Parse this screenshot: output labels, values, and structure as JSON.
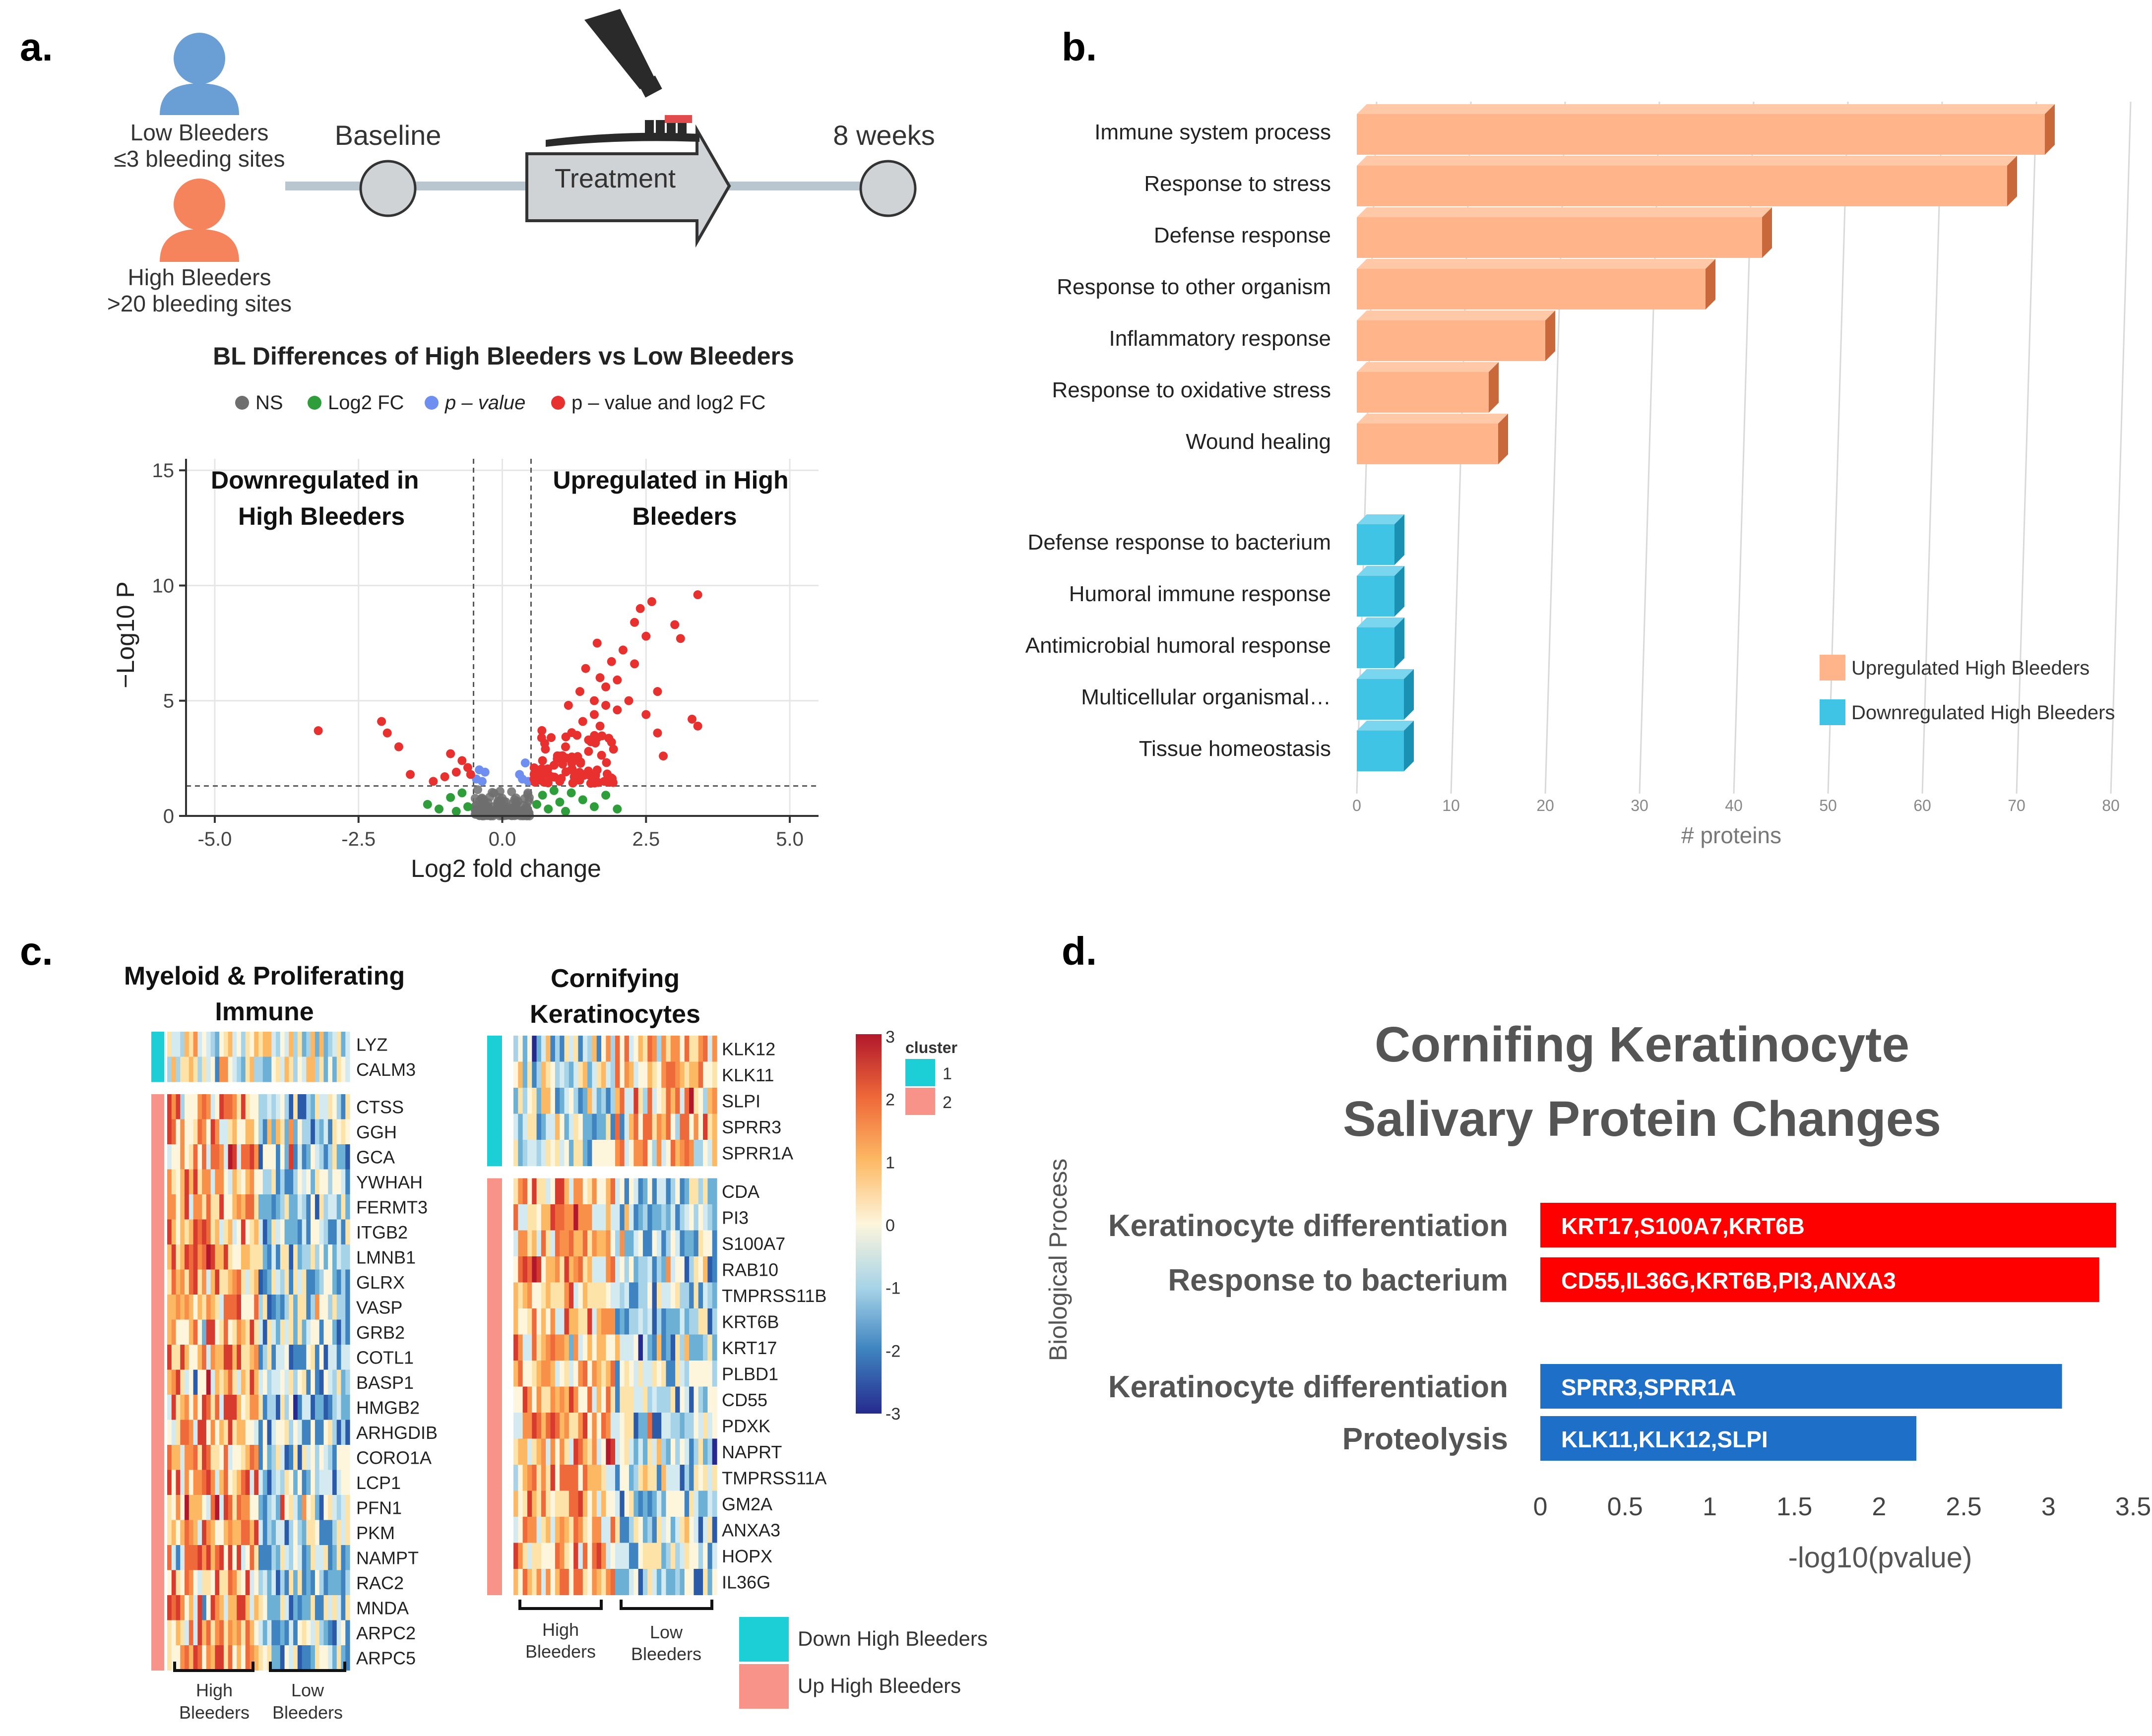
{
  "panel_labels": {
    "a": "a.",
    "b": "b.",
    "c": "c.",
    "d": "d."
  },
  "study": {
    "low_label": "Low Bleeders",
    "low_criteria": "≤3 bleeding sites",
    "high_label": "High Bleeders",
    "high_criteria": ">20 bleeding sites",
    "baseline": "Baseline",
    "treatment": "Treatment",
    "endpoint": "8 weeks"
  },
  "colors": {
    "up_orange": "#ffb48a",
    "down_blue": "#40c4e6",
    "ns": "#6e6e6e",
    "fc": "#2e9e3a",
    "pval": "#6e8ef0",
    "both": "#e8302e",
    "bar_red": "#ff0000",
    "bar_blue": "#1e6fc8",
    "cluster_teal": "#1ccfd6",
    "cluster_salmon": "#f8938a"
  },
  "volcano": {
    "title": "BL Differences of High Bleeders vs Low Bleeders",
    "legend": {
      "ns": "NS",
      "fc": "Log2 FC",
      "pval": "p – value",
      "both": "p – value and log2 FC"
    },
    "annotation_down_1": "Downregulated in",
    "annotation_down_2": "High Bleeders",
    "annotation_up_1": "Upregulated in High",
    "annotation_up_2": "Bleeders",
    "xlabel": "Log2 fold change",
    "ylabel": "−Log10 P"
  },
  "chart_data": [
    {
      "type": "scatter",
      "title": "BL Differences of High Bleeders vs Low Bleeders",
      "xlabel": "Log2 fold change",
      "ylabel": "-Log10 P",
      "xlim": [
        -5.5,
        5.5
      ],
      "ylim": [
        0,
        15.5
      ],
      "xticks": [
        "-5.0",
        "-2.5",
        "0.0",
        "2.5",
        "5.0"
      ],
      "yticks": [
        "0",
        "5",
        "10",
        "15"
      ],
      "thresholds": {
        "fc": 0.5,
        "p": 1.3
      },
      "significant_points": [
        [
          -3.2,
          3.7
        ],
        [
          -2.1,
          4.1
        ],
        [
          -2.0,
          3.6
        ],
        [
          -1.8,
          3.0
        ],
        [
          -1.6,
          1.8
        ],
        [
          -1.2,
          1.5
        ],
        [
          -1.0,
          1.7
        ],
        [
          -0.9,
          2.7
        ],
        [
          -0.8,
          1.9
        ],
        [
          -0.7,
          2.4
        ],
        [
          -0.55,
          1.8
        ],
        [
          -0.6,
          2.1
        ],
        [
          0.55,
          1.6
        ],
        [
          0.6,
          2.0
        ],
        [
          0.7,
          2.4
        ],
        [
          0.8,
          1.8
        ],
        [
          0.9,
          2.2
        ],
        [
          1.0,
          1.5
        ],
        [
          1.0,
          2.6
        ],
        [
          1.1,
          3.0
        ],
        [
          1.2,
          2.0
        ],
        [
          1.3,
          2.5
        ],
        [
          1.3,
          3.5
        ],
        [
          1.4,
          4.1
        ],
        [
          1.5,
          2.8
        ],
        [
          1.5,
          3.3
        ],
        [
          1.6,
          5.0
        ],
        [
          1.6,
          4.4
        ],
        [
          1.7,
          6.0
        ],
        [
          1.7,
          3.9
        ],
        [
          1.8,
          5.6
        ],
        [
          1.8,
          4.8
        ],
        [
          1.9,
          6.7
        ],
        [
          1.9,
          3.2
        ],
        [
          2.0,
          4.6
        ],
        [
          2.0,
          5.9
        ],
        [
          2.1,
          7.2
        ],
        [
          2.2,
          5.0
        ],
        [
          2.3,
          8.4
        ],
        [
          2.3,
          6.6
        ],
        [
          2.4,
          9.0
        ],
        [
          2.5,
          7.8
        ],
        [
          2.5,
          4.4
        ],
        [
          2.6,
          9.3
        ],
        [
          2.7,
          5.4
        ],
        [
          2.7,
          3.6
        ],
        [
          3.0,
          8.3
        ],
        [
          3.1,
          7.7
        ],
        [
          3.3,
          4.2
        ],
        [
          3.4,
          9.6
        ],
        [
          3.4,
          3.9
        ],
        [
          2.8,
          2.6
        ],
        [
          0.75,
          2.9
        ],
        [
          0.85,
          3.4
        ],
        [
          1.15,
          4.8
        ],
        [
          1.35,
          5.4
        ],
        [
          1.45,
          6.4
        ],
        [
          1.65,
          7.5
        ]
      ],
      "pvalue_only_points": [
        [
          -0.45,
          1.6
        ],
        [
          -0.4,
          2.0
        ],
        [
          -0.35,
          1.5
        ],
        [
          -0.3,
          1.9
        ],
        [
          0.35,
          1.6
        ],
        [
          0.4,
          2.3
        ],
        [
          0.45,
          1.5
        ],
        [
          0.3,
          1.8
        ]
      ],
      "fc_only_points": [
        [
          -1.3,
          0.5
        ],
        [
          -1.1,
          0.3
        ],
        [
          -0.9,
          0.8
        ],
        [
          -0.8,
          0.2
        ],
        [
          -0.7,
          1.0
        ],
        [
          -0.6,
          0.4
        ],
        [
          0.6,
          0.5
        ],
        [
          0.7,
          0.9
        ],
        [
          0.8,
          0.3
        ],
        [
          0.9,
          1.1
        ],
        [
          1.0,
          0.6
        ],
        [
          1.1,
          0.2
        ],
        [
          1.2,
          1.0
        ],
        [
          1.4,
          0.7
        ],
        [
          1.6,
          0.4
        ],
        [
          1.8,
          0.9
        ],
        [
          2.0,
          0.3
        ]
      ]
    },
    {
      "type": "bar",
      "orientation": "horizontal",
      "xlabel": "# proteins",
      "xlim": [
        0,
        80
      ],
      "xticks": [
        "0",
        "10",
        "20",
        "30",
        "40",
        "50",
        "60",
        "70",
        "80"
      ],
      "categories": [
        "Immune system process",
        "Response to stress",
        "Defense response",
        "Response to other organism",
        "Inflammatory response",
        "Response to oxidative stress",
        "Wound healing",
        "Defense response to bacterium",
        "Humoral immune response",
        "Antimicrobial humoral response",
        "Multicellular organismal…",
        "Tissue homeostasis"
      ],
      "values": [
        73,
        69,
        43,
        37,
        20,
        14,
        15,
        4,
        4,
        4,
        5,
        5
      ],
      "groups": [
        "up",
        "up",
        "up",
        "up",
        "up",
        "up",
        "up",
        "down",
        "down",
        "down",
        "down",
        "down"
      ],
      "legend": [
        "Upregulated High Bleeders",
        "Downregulated High Bleeders"
      ]
    },
    {
      "type": "heatmap",
      "title": "Myeloid & Proliferating Immune",
      "rows": [
        "LYZ",
        "CALM3",
        "CTSS",
        "GGH",
        "GCA",
        "YWHAH",
        "FERMT3",
        "ITGB2",
        "LMNB1",
        "GLRX",
        "VASP",
        "GRB2",
        "COTL1",
        "BASP1",
        "HMGB2",
        "ARHGDIB",
        "CORO1A",
        "LCP1",
        "PFN1",
        "PKM",
        "NAMPT",
        "RAC2",
        "MNDA",
        "ARPC2",
        "ARPC5"
      ],
      "row_clusters": [
        1,
        1,
        2,
        2,
        2,
        2,
        2,
        2,
        2,
        2,
        2,
        2,
        2,
        2,
        2,
        2,
        2,
        2,
        2,
        2,
        2,
        2,
        2,
        2,
        2
      ],
      "column_groups": [
        "High Bleeders",
        "Low Bleeders"
      ],
      "scale": [
        -3,
        3
      ]
    },
    {
      "type": "heatmap",
      "title": "Cornifying Keratinocytes",
      "rows": [
        "KLK12",
        "KLK11",
        "SLPI",
        "SPRR3",
        "SPRR1A",
        "CDA",
        "PI3",
        "S100A7",
        "RAB10",
        "TMPRSS11B",
        "KRT6B",
        "KRT17",
        "PLBD1",
        "CD55",
        "PDXK",
        "NAPRT",
        "TMPRSS11A",
        "GM2A",
        "ANXA3",
        "HOPX",
        "IL36G"
      ],
      "row_clusters": [
        1,
        1,
        1,
        1,
        1,
        2,
        2,
        2,
        2,
        2,
        2,
        2,
        2,
        2,
        2,
        2,
        2,
        2,
        2,
        2,
        2
      ],
      "column_groups": [
        "High Bleeders",
        "Low Bleeders"
      ],
      "scale": [
        -3,
        3
      ]
    },
    {
      "type": "bar",
      "orientation": "horizontal",
      "title": "Cornifing Keratinocyte Salivary Protein Changes",
      "xlabel": "-log10(pvalue)",
      "ylabel": "Biological Process",
      "xlim": [
        0,
        3.5
      ],
      "xticks": [
        "0",
        "0.5",
        "1",
        "1.5",
        "2",
        "2.5",
        "3",
        "3.5"
      ],
      "categories": [
        "Keratinocyte differentiation",
        "Response to bacterium",
        "Keratinocyte differentiation",
        "Proteolysis"
      ],
      "values": [
        3.4,
        3.3,
        3.08,
        2.22
      ],
      "genes": [
        "KRT17,S100A7,KRT6B",
        "CD55,IL36G,KRT6B,PI3,ANXA3",
        "SPRR3,SPRR1A",
        "KLK11,KLK12,SLPI"
      ],
      "direction": [
        "up",
        "up",
        "down",
        "down"
      ]
    }
  ],
  "heatmap_common": {
    "colorbar_ticks": [
      "3",
      "2",
      "1",
      "0",
      "-1",
      "-2",
      "-3"
    ],
    "cluster_title": "cluster",
    "cluster_labels": [
      "1",
      "2"
    ],
    "legend_down": "Down High Bleeders",
    "legend_up": "Up High Bleeders",
    "high_1": "High",
    "high_2": "Bleeders",
    "low_1": "Low",
    "low_2": "Bleeders"
  },
  "panel_c_titles": {
    "myeloid_1": "Myeloid & Proliferating",
    "myeloid_2": "Immune",
    "corn_1": "Cornifying",
    "corn_2": "Keratinocytes"
  },
  "panel_d_titles": {
    "line1": "Cornifing Keratinocyte",
    "line2": "Salivary Protein Changes"
  }
}
